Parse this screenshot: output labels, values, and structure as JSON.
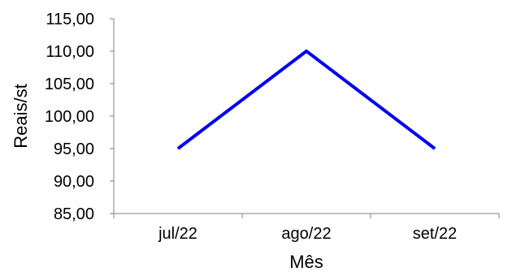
{
  "chart_data": {
    "type": "line",
    "title": "",
    "xlabel": "Mês",
    "ylabel": "Reais/st",
    "categories": [
      "jul/22",
      "ago/22",
      "set/22"
    ],
    "series": [
      {
        "values": [
          95.0,
          110.0,
          95.0
        ],
        "color": "#0000ee"
      }
    ],
    "ylim": [
      85,
      115
    ],
    "yticks": [
      "85,00",
      "90,00",
      "95,00",
      "100,00",
      "105,00",
      "110,00",
      "115,00"
    ],
    "grid": false,
    "legend": "none"
  }
}
